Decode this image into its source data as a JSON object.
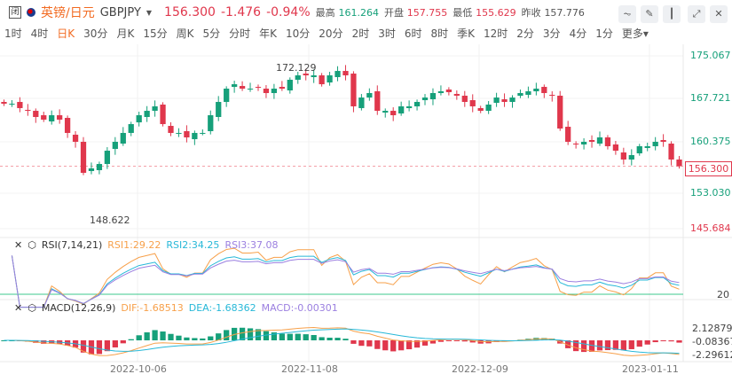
{
  "header": {
    "close_label": "闭",
    "name": "英镑/日元",
    "symbol": "GBPJPY",
    "price": "156.300",
    "change": "-1.476",
    "change_pct": "-0.94%",
    "high_label": "最高",
    "high": "161.264",
    "open_label": "开盘",
    "open": "157.755",
    "low_label": "最低",
    "low": "155.629",
    "prev_label": "昨收",
    "prev": "157.776"
  },
  "toolbar": [
    "line-chart-icon",
    "draw-icon",
    "candle-icon",
    "expand-icon",
    "close-icon"
  ],
  "periods": [
    "1时",
    "4时",
    "日K",
    "30分",
    "月K",
    "15分",
    "周K",
    "5分",
    "分时",
    "年K",
    "10分",
    "20分",
    "2时",
    "3时",
    "6时",
    "8时",
    "季K",
    "12时",
    "2分",
    "3分",
    "4分",
    "1分",
    "更多"
  ],
  "active_period": "日K",
  "colors": {
    "up": "#16a07a",
    "down": "#e0374c",
    "rsi1": "#f7a04a",
    "rsi2": "#27b8d8",
    "rsi3": "#9b7fe0"
  },
  "chart_data": {
    "type": "candlestick",
    "ylim": [
      145.684,
      175.067
    ],
    "yticks": [
      "175.067",
      "167.721",
      "160.375",
      "153.030",
      "145.684"
    ],
    "last_price": "156.300",
    "max_label": "172.129",
    "min_label": "148.622",
    "closes": [
      166.93,
      166.93,
      166.18,
      165.72,
      164.67,
      164.22,
      164.97,
      164.22,
      161.96,
      160.45,
      155.18,
      155.93,
      156.68,
      158.94,
      160.45,
      161.96,
      163.46,
      164.97,
      165.72,
      166.48,
      163.46,
      161.96,
      161.96,
      161.2,
      161.96,
      161.96,
      164.97,
      167.23,
      169.49,
      170.24,
      169.49,
      169.49,
      169.79,
      168.74,
      169.49,
      169.49,
      171.0,
      171.75,
      171.75,
      171.75,
      170.24,
      171.75,
      172.5,
      171.75,
      166.48,
      167.98,
      168.74,
      165.72,
      165.72,
      164.97,
      166.48,
      166.48,
      167.23,
      167.98,
      168.74,
      169.04,
      168.89,
      168.29,
      167.23,
      166.48,
      165.72,
      166.78,
      167.98,
      167.23,
      167.98,
      168.74,
      169.04,
      169.49,
      168.74,
      168.29,
      162.71,
      160.45,
      160.0,
      160.45,
      160.45,
      161.2,
      159.7,
      158.94,
      157.44,
      158.19,
      159.7,
      159.7,
      160.45,
      160.45,
      157.44,
      156.3
    ],
    "dates": [
      "2022-10-06",
      "2022-11-08",
      "2022-12-09",
      "2023-01-11"
    ]
  },
  "rsi": {
    "title": "RSI(7,14,21)",
    "rsi1": "RSI1:29.22",
    "rsi2": "RSI2:34.25",
    "rsi3": "RSI3:37.08",
    "level": "20"
  },
  "macd": {
    "title": "MACD(12,26,9)",
    "dif": "DIF:-1.68513",
    "dea": "DEA:-1.68362",
    "macd": "MACD:-0.00301",
    "ticks": [
      "2.12879",
      "-0.08367",
      "-2.29612"
    ]
  }
}
